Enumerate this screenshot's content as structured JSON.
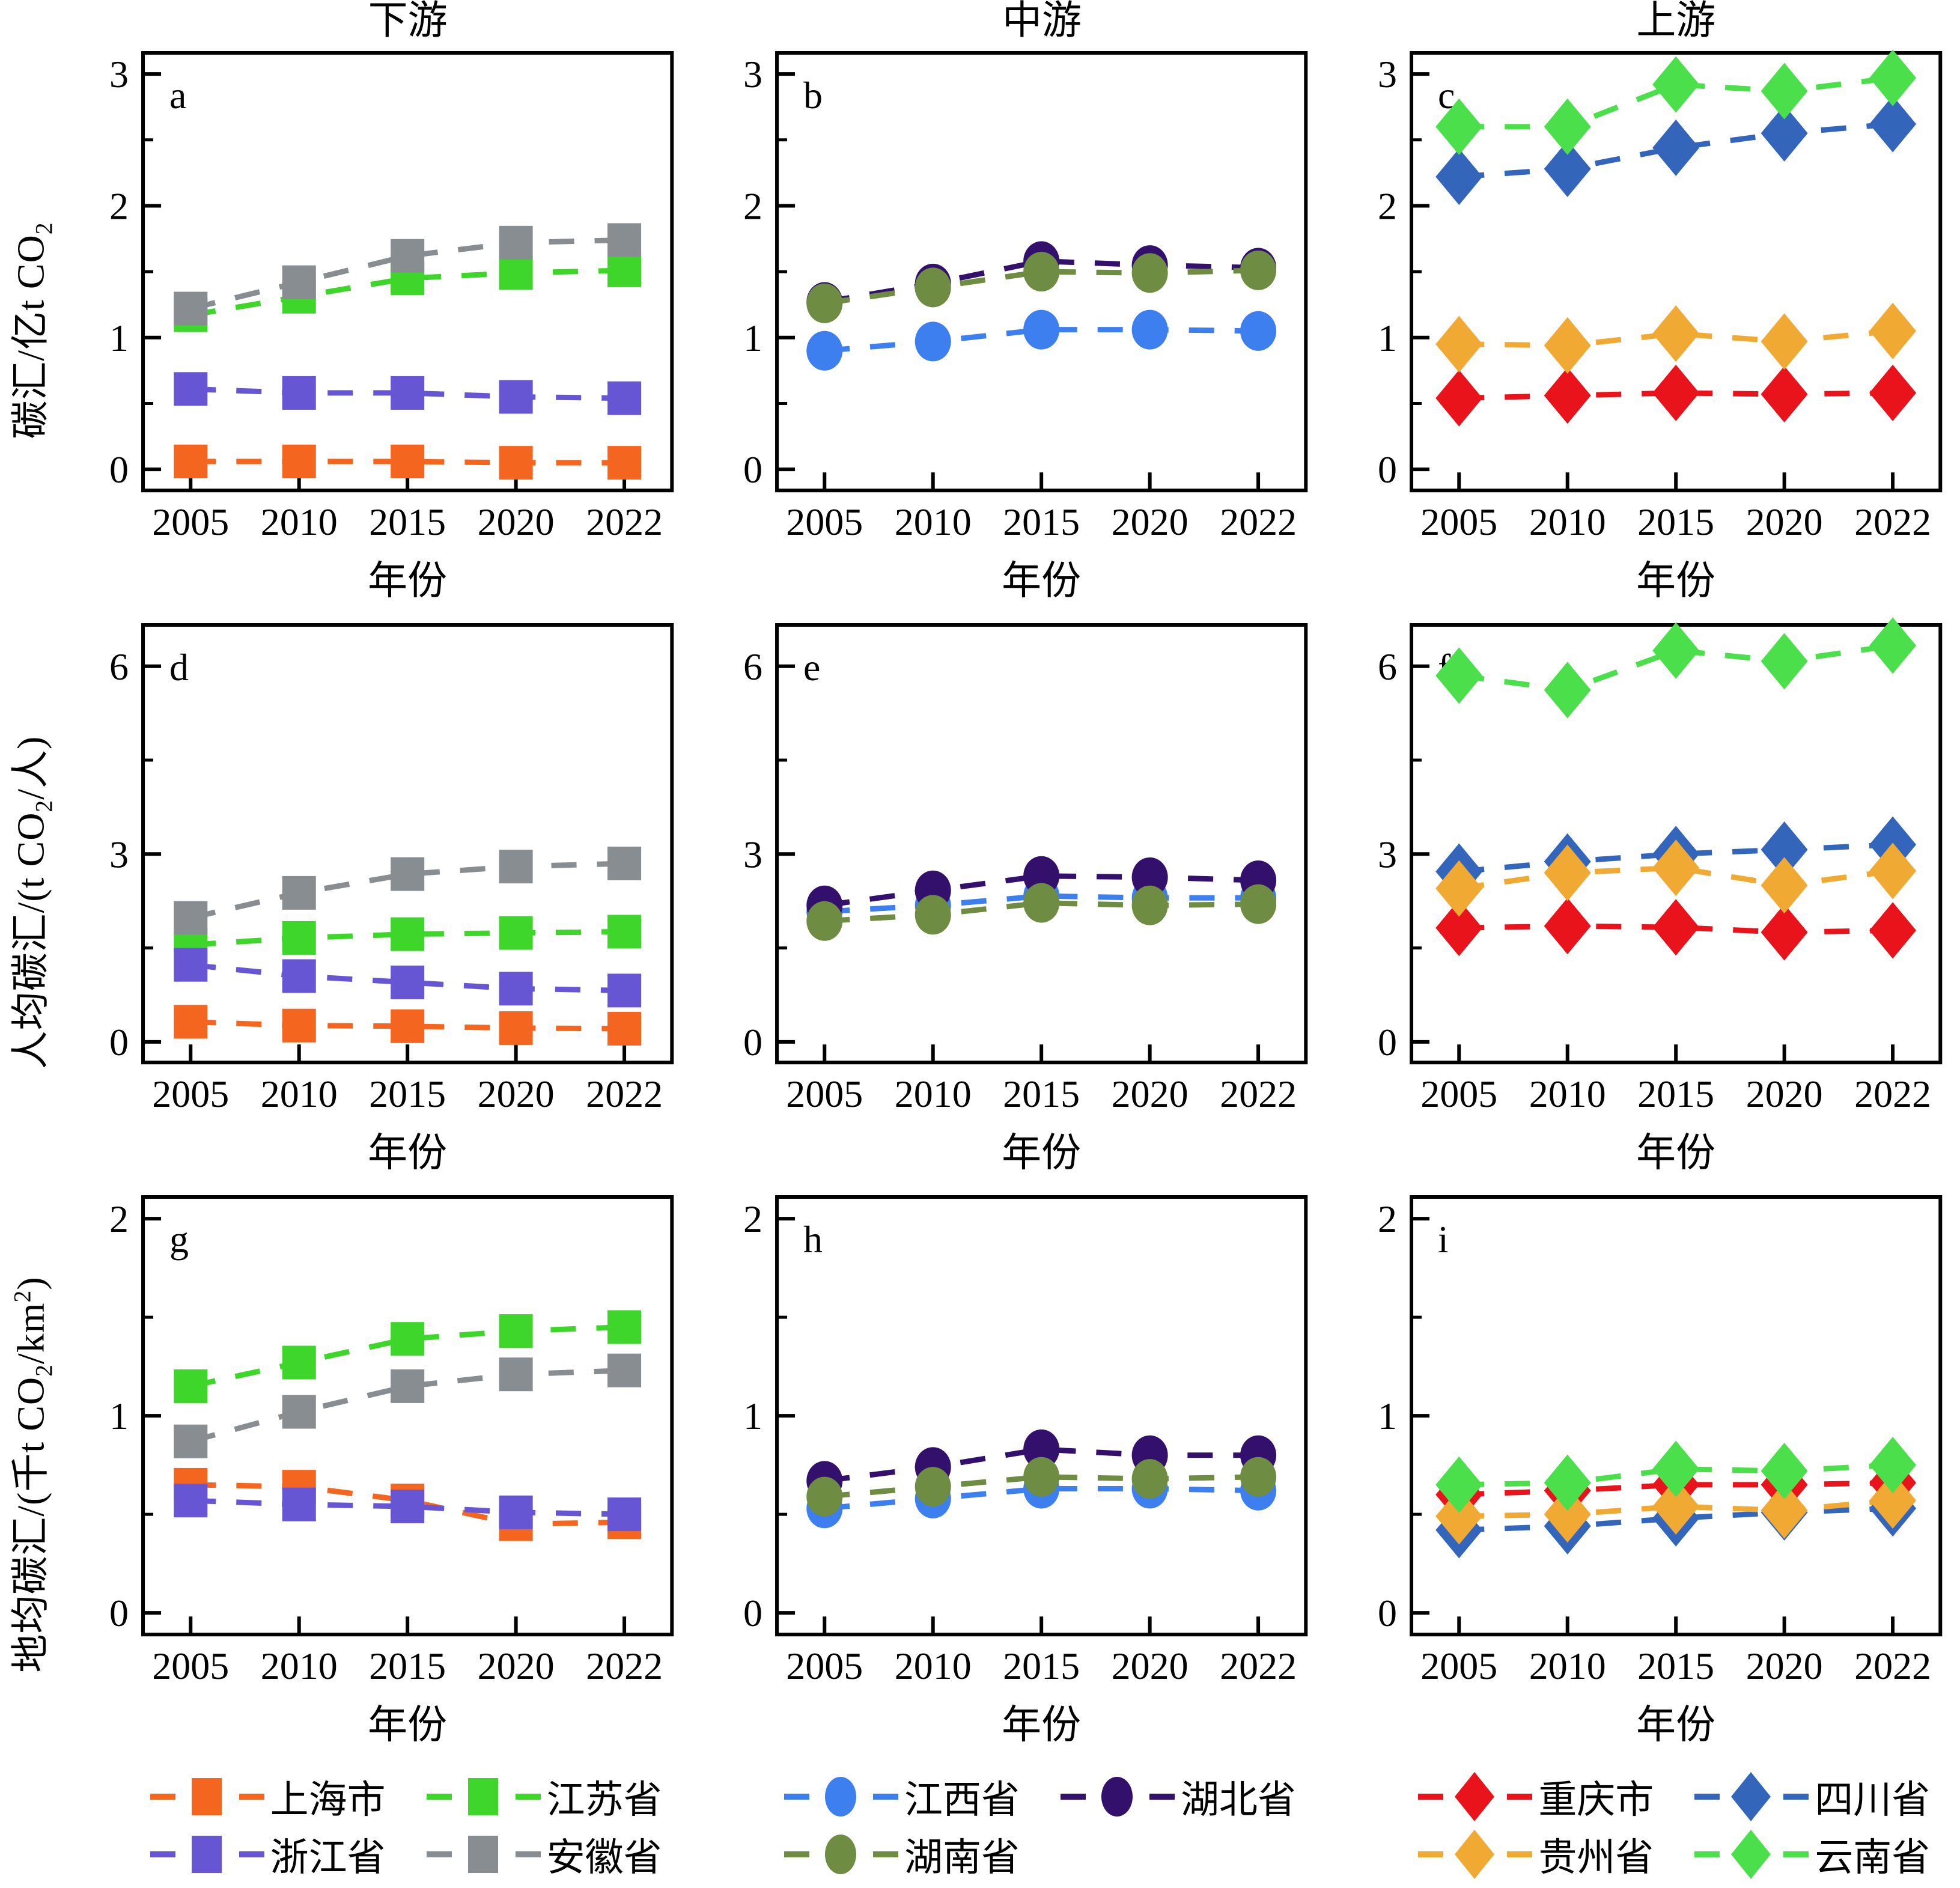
{
  "chart_data": {
    "type": "line",
    "figure_title": "",
    "xlabel": "年份",
    "categories": [
      "2005",
      "2010",
      "2015",
      "2020",
      "2022"
    ],
    "column_titles": [
      "下游",
      "中游",
      "上游"
    ],
    "line_style": "dashed",
    "grid": false,
    "y_axes": [
      {
        "label": "碳汇/亿t CO2",
        "label_parts": [
          {
            "t": "碳汇/亿t CO"
          },
          {
            "t": "2",
            "s": "sub"
          }
        ],
        "majors": [
          0,
          1,
          2,
          3
        ],
        "minors": [
          0.5,
          1.5,
          2.5
        ],
        "vmin": -0.16,
        "vmax": 3.16
      },
      {
        "label": "人均碳汇/(t CO2/人)",
        "label_parts": [
          {
            "t": "人均碳汇/(t CO"
          },
          {
            "t": "2",
            "s": "sub"
          },
          {
            "t": "/人)"
          }
        ],
        "majors": [
          0,
          3,
          6
        ],
        "minors": [
          1.5,
          4.5
        ],
        "vmin": -0.33,
        "vmax": 6.66
      },
      {
        "label": "地均碳汇/(千t CO2/km2)",
        "label_parts": [
          {
            "t": "地均碳汇/(千t CO"
          },
          {
            "t": "2",
            "s": "sub"
          },
          {
            "t": "/km"
          },
          {
            "t": "2",
            "s": "sup"
          },
          {
            "t": ")"
          }
        ],
        "majors": [
          0,
          1,
          2
        ],
        "minors": [
          0.5,
          1.5
        ],
        "vmin": -0.11,
        "vmax": 2.11
      }
    ],
    "panels": [
      {
        "letter": "a",
        "column": "下游",
        "row": 0,
        "series": [
          {
            "name": "上海市",
            "marker": "square",
            "color": "#F4661F",
            "values": [
              0.06,
              0.06,
              0.06,
              0.05,
              0.05
            ]
          },
          {
            "name": "江苏省",
            "marker": "square",
            "color": "#3FD62B",
            "values": [
              1.17,
              1.31,
              1.45,
              1.49,
              1.51
            ]
          },
          {
            "name": "浙江省",
            "marker": "square",
            "color": "#6656D4",
            "values": [
              0.61,
              0.58,
              0.58,
              0.55,
              0.54
            ]
          },
          {
            "name": "安徽省",
            "marker": "square",
            "color": "#878D90",
            "values": [
              1.22,
              1.42,
              1.62,
              1.72,
              1.74
            ]
          }
        ]
      },
      {
        "letter": "b",
        "column": "中游",
        "row": 0,
        "series": [
          {
            "name": "江西省",
            "marker": "circle",
            "color": "#3D7FEF",
            "values": [
              0.9,
              0.97,
              1.06,
              1.06,
              1.05
            ]
          },
          {
            "name": "湖北省",
            "marker": "circle",
            "color": "#33106B",
            "values": [
              1.27,
              1.41,
              1.58,
              1.55,
              1.53
            ]
          },
          {
            "name": "湖南省",
            "marker": "circle",
            "color": "#6E8C42",
            "values": [
              1.26,
              1.38,
              1.5,
              1.49,
              1.51
            ]
          }
        ]
      },
      {
        "letter": "c",
        "column": "上游",
        "row": 0,
        "series": [
          {
            "name": "重庆市",
            "marker": "diamond",
            "color": "#E9131B",
            "values": [
              0.54,
              0.56,
              0.58,
              0.57,
              0.58
            ]
          },
          {
            "name": "四川省",
            "marker": "diamond",
            "color": "#3366BB",
            "values": [
              2.22,
              2.28,
              2.44,
              2.55,
              2.62
            ]
          },
          {
            "name": "贵州省",
            "marker": "diamond",
            "color": "#F0A932",
            "values": [
              0.95,
              0.94,
              1.03,
              0.97,
              1.05
            ]
          },
          {
            "name": "云南省",
            "marker": "diamond",
            "color": "#4BE04B",
            "values": [
              2.6,
              2.6,
              2.92,
              2.87,
              2.97
            ]
          }
        ]
      },
      {
        "letter": "d",
        "column": "下游",
        "row": 1,
        "series": [
          {
            "name": "上海市",
            "marker": "square",
            "color": "#F4661F",
            "values": [
              0.32,
              0.26,
              0.25,
              0.22,
              0.21
            ]
          },
          {
            "name": "江苏省",
            "marker": "square",
            "color": "#3FD62B",
            "values": [
              1.55,
              1.66,
              1.72,
              1.74,
              1.76
            ]
          },
          {
            "name": "浙江省",
            "marker": "square",
            "color": "#6656D4",
            "values": [
              1.23,
              1.05,
              0.95,
              0.85,
              0.82
            ]
          },
          {
            "name": "安徽省",
            "marker": "square",
            "color": "#878D90",
            "values": [
              1.98,
              2.38,
              2.68,
              2.8,
              2.85
            ]
          }
        ]
      },
      {
        "letter": "e",
        "column": "中游",
        "row": 1,
        "series": [
          {
            "name": "江西省",
            "marker": "circle",
            "color": "#3D7FEF",
            "values": [
              2.08,
              2.18,
              2.33,
              2.3,
              2.3
            ]
          },
          {
            "name": "湖北省",
            "marker": "circle",
            "color": "#33106B",
            "values": [
              2.18,
              2.42,
              2.65,
              2.63,
              2.58
            ]
          },
          {
            "name": "湖南省",
            "marker": "circle",
            "color": "#6E8C42",
            "values": [
              1.93,
              2.03,
              2.22,
              2.18,
              2.2
            ]
          }
        ]
      },
      {
        "letter": "f",
        "column": "上游",
        "row": 1,
        "series": [
          {
            "name": "重庆市",
            "marker": "diamond",
            "color": "#E9131B",
            "values": [
              1.82,
              1.85,
              1.83,
              1.75,
              1.78
            ]
          },
          {
            "name": "四川省",
            "marker": "diamond",
            "color": "#3366BB",
            "values": [
              2.72,
              2.88,
              3.0,
              3.07,
              3.15
            ]
          },
          {
            "name": "贵州省",
            "marker": "diamond",
            "color": "#F0A932",
            "values": [
              2.45,
              2.7,
              2.78,
              2.5,
              2.73
            ]
          },
          {
            "name": "云南省",
            "marker": "diamond",
            "color": "#4BE04B",
            "values": [
              5.85,
              5.62,
              6.25,
              6.08,
              6.33
            ]
          }
        ]
      },
      {
        "letter": "g",
        "column": "下游",
        "row": 2,
        "series": [
          {
            "name": "上海市",
            "marker": "square",
            "color": "#F4661F",
            "values": [
              0.65,
              0.64,
              0.57,
              0.45,
              0.46
            ]
          },
          {
            "name": "江苏省",
            "marker": "square",
            "color": "#3FD62B",
            "values": [
              1.15,
              1.27,
              1.39,
              1.43,
              1.45
            ]
          },
          {
            "name": "浙江省",
            "marker": "square",
            "color": "#6656D4",
            "values": [
              0.57,
              0.55,
              0.54,
              0.51,
              0.5
            ]
          },
          {
            "name": "安徽省",
            "marker": "square",
            "color": "#878D90",
            "values": [
              0.87,
              1.02,
              1.15,
              1.21,
              1.23
            ]
          }
        ]
      },
      {
        "letter": "h",
        "column": "中游",
        "row": 2,
        "series": [
          {
            "name": "江西省",
            "marker": "circle",
            "color": "#3D7FEF",
            "values": [
              0.53,
              0.58,
              0.63,
              0.63,
              0.62
            ]
          },
          {
            "name": "湖北省",
            "marker": "circle",
            "color": "#33106B",
            "values": [
              0.67,
              0.74,
              0.83,
              0.8,
              0.8
            ]
          },
          {
            "name": "湖南省",
            "marker": "circle",
            "color": "#6E8C42",
            "values": [
              0.59,
              0.64,
              0.69,
              0.68,
              0.69
            ]
          }
        ]
      },
      {
        "letter": "i",
        "column": "上游",
        "row": 2,
        "series": [
          {
            "name": "重庆市",
            "marker": "diamond",
            "color": "#E9131B",
            "values": [
              0.6,
              0.62,
              0.65,
              0.65,
              0.66
            ]
          },
          {
            "name": "四川省",
            "marker": "diamond",
            "color": "#3366BB",
            "values": [
              0.42,
              0.44,
              0.48,
              0.51,
              0.53
            ]
          },
          {
            "name": "贵州省",
            "marker": "diamond",
            "color": "#F0A932",
            "values": [
              0.49,
              0.5,
              0.54,
              0.52,
              0.57
            ]
          },
          {
            "name": "云南省",
            "marker": "diamond",
            "color": "#4BE04B",
            "values": [
              0.65,
              0.66,
              0.73,
              0.72,
              0.75
            ]
          }
        ]
      }
    ]
  },
  "legends": [
    {
      "column": "下游",
      "items": [
        {
          "label": "上海市",
          "color": "#F4661F",
          "marker": "square"
        },
        {
          "label": "江苏省",
          "color": "#3FD62B",
          "marker": "square"
        },
        {
          "label": "浙江省",
          "color": "#6656D4",
          "marker": "square"
        },
        {
          "label": "安徽省",
          "color": "#878D90",
          "marker": "square"
        }
      ]
    },
    {
      "column": "中游",
      "items": [
        {
          "label": "江西省",
          "color": "#3D7FEF",
          "marker": "circle"
        },
        {
          "label": "湖北省",
          "color": "#33106B",
          "marker": "circle"
        },
        {
          "label": "湖南省",
          "color": "#6E8C42",
          "marker": "circle"
        }
      ]
    },
    {
      "column": "上游",
      "items": [
        {
          "label": "重庆市",
          "color": "#E9131B",
          "marker": "diamond"
        },
        {
          "label": "四川省",
          "color": "#3366BB",
          "marker": "diamond"
        },
        {
          "label": "贵州省",
          "color": "#F0A932",
          "marker": "diamond"
        },
        {
          "label": "云南省",
          "color": "#4BE04B",
          "marker": "diamond"
        }
      ]
    }
  ],
  "colors": {
    "axis": "#000000",
    "background": "#FFFFFF"
  }
}
